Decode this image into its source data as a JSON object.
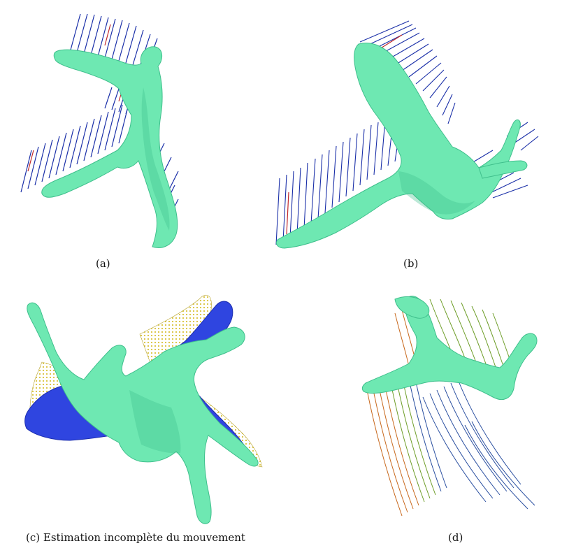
{
  "figure": {
    "panels": [
      {
        "id": "a",
        "caption": "(a)",
        "content": "mesh-with-motion-vectors"
      },
      {
        "id": "b",
        "caption": "(b)",
        "content": "mesh-with-motion-vectors"
      },
      {
        "id": "c",
        "caption": "(c) Estimation incomplète du mouvement",
        "content": "overlaid-meshes-with-point-cloud"
      },
      {
        "id": "d",
        "caption": "(d)",
        "content": "mesh-with-colored-flow-lines"
      }
    ]
  },
  "colors": {
    "mesh": "#6ee8b2",
    "mesh_shade": "#3fbf8c",
    "vectors": "#1a2fa8",
    "vectors_red": "#c0282a",
    "blue_mesh": "#2f45e0",
    "points": "#d9c23a",
    "flow_orange": "#c8691e",
    "flow_green": "#6f9e2a",
    "flow_blue": "#2a4fa0"
  }
}
